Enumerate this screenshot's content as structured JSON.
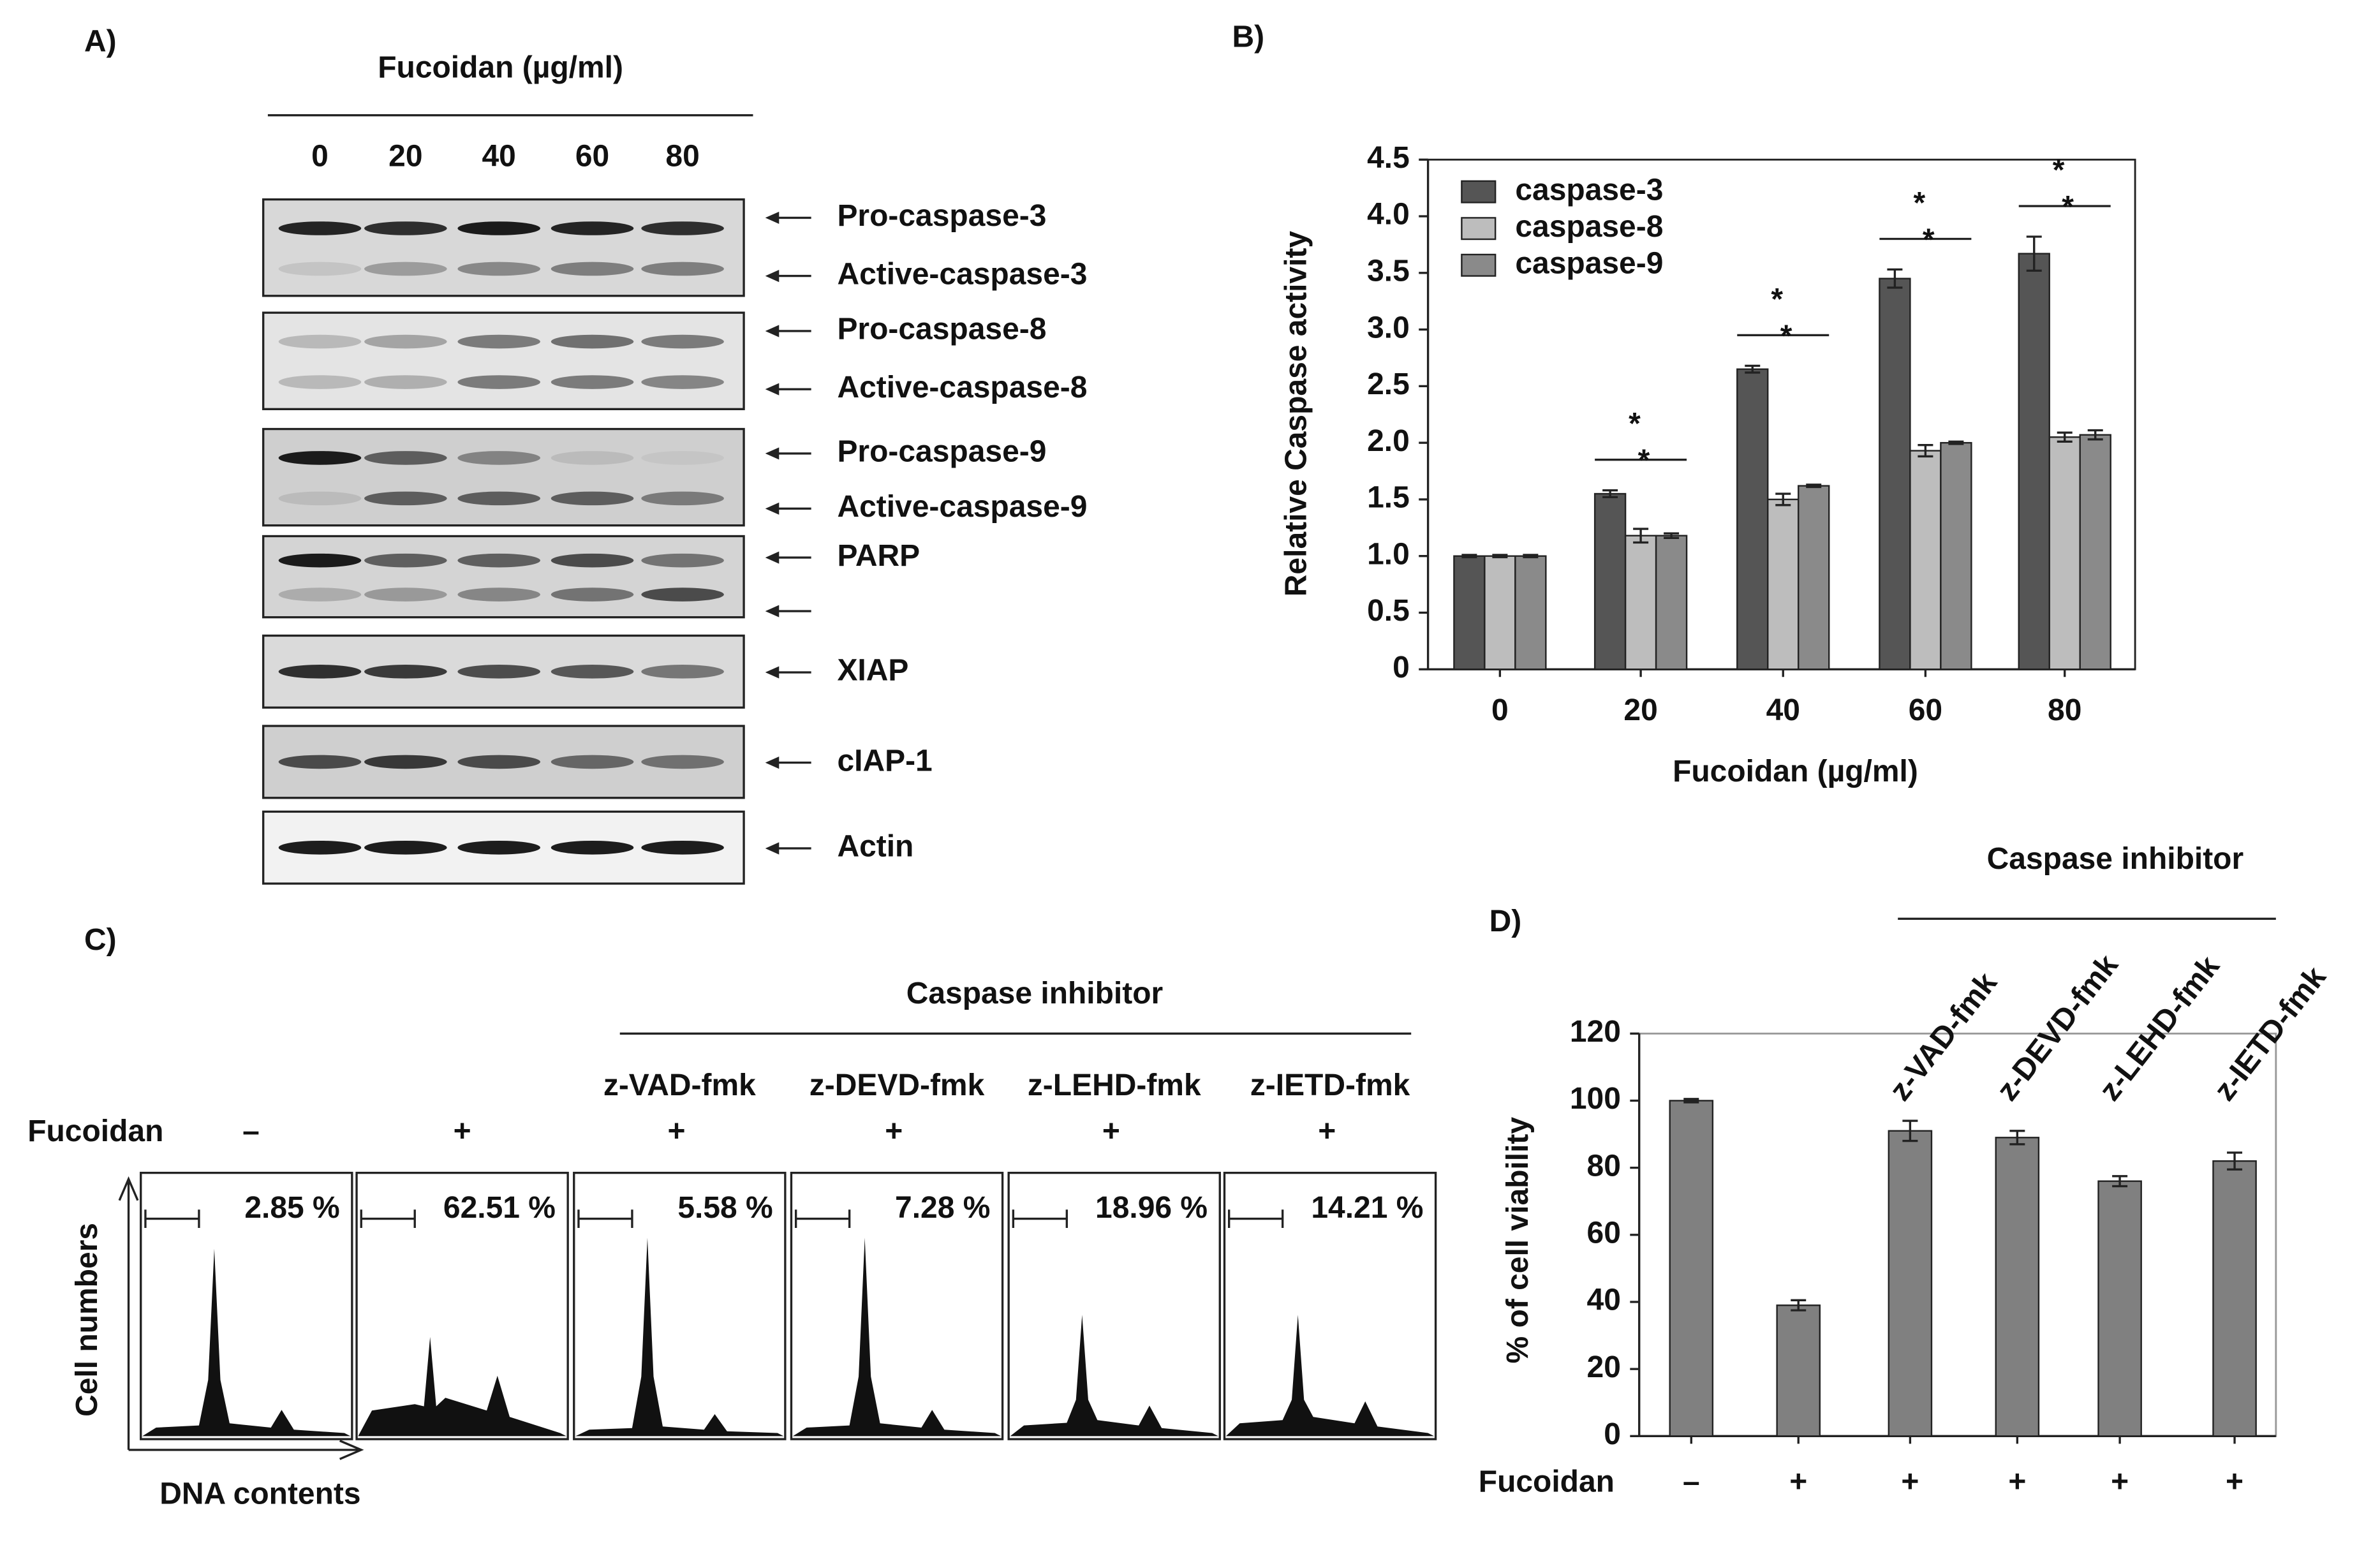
{
  "panel_a": {
    "label": "A)",
    "treatment": "Fucoidan (µg/ml)",
    "doses": [
      "0",
      "20",
      "40",
      "60",
      "80"
    ],
    "blots": [
      [
        "Pro-caspase-3",
        "Active-caspase-3"
      ],
      [
        "Pro-caspase-8",
        "Active-caspase-8"
      ],
      [
        "Pro-caspase-9",
        "Active-caspase-9"
      ],
      [
        "PARP",
        null
      ],
      [
        "XIAP"
      ],
      [
        "cIAP-1"
      ],
      [
        "Actin"
      ]
    ]
  },
  "panel_c": {
    "label": "C)",
    "group_label": "Caspase inhibitor",
    "row_label": "Fucoidan",
    "ylabel": "Cell numbers",
    "xlabel": "DNA contents",
    "columns": [
      {
        "inhibitor": null,
        "fucoidan": "–",
        "gated": "2.85 %"
      },
      {
        "inhibitor": null,
        "fucoidan": "+",
        "gated": "62.51 %"
      },
      {
        "inhibitor": "z-VAD-fmk",
        "fucoidan": "+",
        "gated": "5.58 %"
      },
      {
        "inhibitor": "z-DEVD-fmk",
        "fucoidan": "+",
        "gated": "7.28 %"
      },
      {
        "inhibitor": "z-LEHD-fmk",
        "fucoidan": "+",
        "gated": "18.96 %"
      },
      {
        "inhibitor": "z-IETD-fmk",
        "fucoidan": "+",
        "gated": "14.21 %"
      }
    ]
  },
  "chart_data": [
    {
      "type": "bar",
      "panel": "B)",
      "ylabel": "Relative Caspase activity",
      "xlabel": "Fucoidan (µg/ml)",
      "categories": [
        "0",
        "20",
        "40",
        "60",
        "80"
      ],
      "series": [
        {
          "name": "caspase-3",
          "color": "#555555",
          "values": [
            1.0,
            1.55,
            2.65,
            3.45,
            3.67
          ],
          "errors": [
            0.01,
            0.03,
            0.03,
            0.08,
            0.15
          ]
        },
        {
          "name": "caspase-8",
          "color": "#bdbdbd",
          "values": [
            1.0,
            1.18,
            1.5,
            1.93,
            2.05
          ],
          "errors": [
            0.01,
            0.06,
            0.05,
            0.05,
            0.04
          ]
        },
        {
          "name": "caspase-9",
          "color": "#8a8a8a",
          "values": [
            1.0,
            1.18,
            1.62,
            2.0,
            2.07
          ],
          "errors": [
            0.01,
            0.02,
            0.01,
            0.01,
            0.04
          ]
        }
      ],
      "ylim": [
        0,
        4.5
      ],
      "yticks": [
        0,
        0.5,
        {
          "value": 1,
          "label": "1.0"
        },
        1.5,
        {
          "value": 2,
          "label": "2.0"
        },
        2.5,
        {
          "value": 3,
          "label": "3.0"
        },
        3.5,
        {
          "value": 4,
          "label": "4.0"
        },
        4.5
      ],
      "legend": "upper left",
      "significance": [
        null,
        [
          "*",
          "*"
        ],
        [
          "*",
          "*"
        ],
        [
          "*",
          "*"
        ],
        [
          "*",
          "*"
        ]
      ]
    },
    {
      "type": "bar",
      "panel": "D)",
      "ylabel": "% of cell viability",
      "xlabel": "Fucoidan",
      "categories": [
        "–",
        "+",
        "+",
        "+",
        "+",
        "+"
      ],
      "values": [
        100,
        39,
        91,
        89,
        76,
        82
      ],
      "errors": [
        0.5,
        1.5,
        3,
        2,
        1.5,
        2.5
      ],
      "color": "#808080",
      "ylim": [
        0,
        120
      ],
      "yticks": [
        0,
        20,
        40,
        60,
        80,
        100,
        120
      ],
      "group_label": "Caspase inhibitor",
      "inhibitors": [
        null,
        null,
        "z-VAD-fmk",
        "z-DEVD-fmk",
        "z-LEHD-fmk",
        "z-IETD-fmk"
      ]
    }
  ]
}
